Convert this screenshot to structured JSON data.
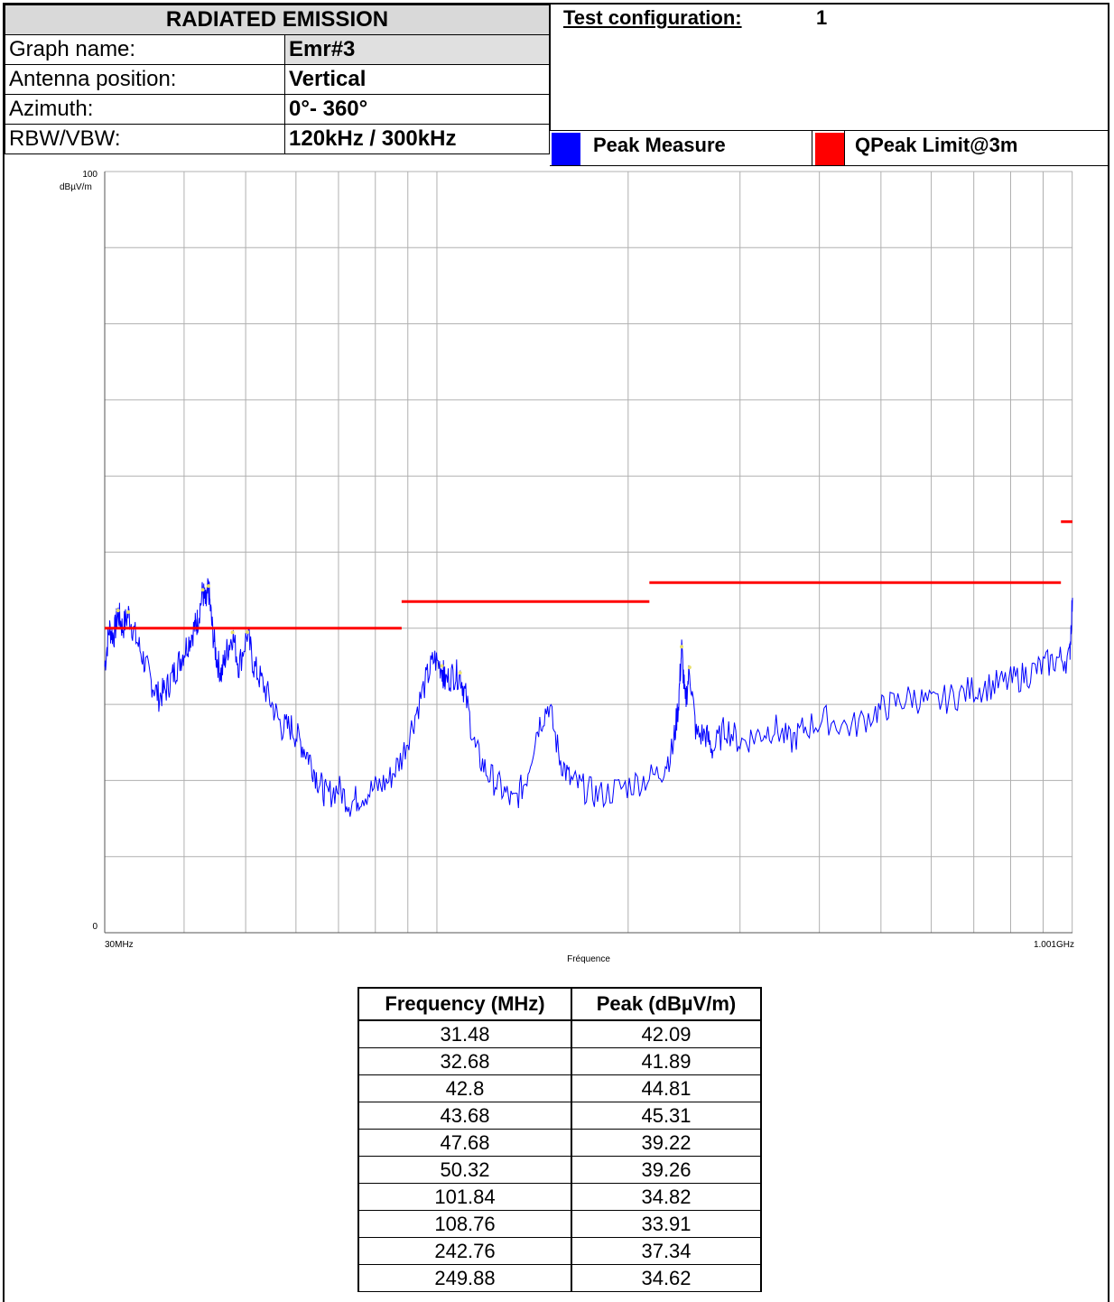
{
  "header": {
    "title": "RADIATED EMISSION",
    "rows": [
      {
        "label": "Graph name:",
        "value": "Emr#3"
      },
      {
        "label": "Antenna position:",
        "value": "Vertical"
      },
      {
        "label": "Azimuth:",
        "value": "0°- 360°"
      },
      {
        "label": "RBW/VBW:",
        "value": "120kHz / 300kHz"
      }
    ],
    "test_config_label": "Test configuration:",
    "test_config_value": "1"
  },
  "legend": [
    {
      "label": "Peak Measure",
      "color": "#0000ff"
    },
    {
      "label": "QPeak Limit@3m",
      "color": "#ff0000"
    }
  ],
  "chart_data": {
    "type": "line",
    "xscale": "log",
    "xlim": [
      30,
      1001
    ],
    "ylim": [
      0,
      100
    ],
    "ylabel": "dBµV/m",
    "xlabel": "Fréquence",
    "y_ticks": [
      "0",
      "100"
    ],
    "x_tick_labels": [
      "30MHz",
      "1.001GHz"
    ],
    "grid": true,
    "series": [
      {
        "name": "Peak Measure",
        "color": "#0000ff",
        "points": [
          [
            30,
            35
          ],
          [
            30.5,
            40
          ],
          [
            31,
            39
          ],
          [
            31.5,
            42
          ],
          [
            32,
            40
          ],
          [
            32.7,
            41.9
          ],
          [
            33.5,
            39
          ],
          [
            34.5,
            36
          ],
          [
            35.5,
            33
          ],
          [
            36.5,
            31
          ],
          [
            37.5,
            32
          ],
          [
            38.5,
            34
          ],
          [
            39.5,
            36
          ],
          [
            40.5,
            38
          ],
          [
            41.5,
            40
          ],
          [
            42,
            41
          ],
          [
            42.8,
            44.8
          ],
          [
            43.3,
            43
          ],
          [
            43.7,
            45.3
          ],
          [
            44.3,
            40
          ],
          [
            45,
            36
          ],
          [
            45.8,
            34
          ],
          [
            46.7,
            37
          ],
          [
            47.7,
            39.2
          ],
          [
            48.8,
            35
          ],
          [
            50.3,
            39.3
          ],
          [
            51.5,
            35
          ],
          [
            53,
            33
          ],
          [
            55,
            30
          ],
          [
            57,
            27
          ],
          [
            59,
            27
          ],
          [
            61,
            25
          ],
          [
            63,
            23
          ],
          [
            65,
            20
          ],
          [
            67,
            18
          ],
          [
            70,
            19
          ],
          [
            73,
            17
          ],
          [
            76,
            18
          ],
          [
            80,
            19
          ],
          [
            84,
            20
          ],
          [
            88,
            23
          ],
          [
            92,
            28
          ],
          [
            96,
            33
          ],
          [
            99,
            36
          ],
          [
            101.8,
            34.8
          ],
          [
            103,
            33
          ],
          [
            106,
            33.9
          ],
          [
            108.8,
            33.9
          ],
          [
            111,
            31
          ],
          [
            115,
            24
          ],
          [
            120,
            21
          ],
          [
            126,
            19
          ],
          [
            132,
            17
          ],
          [
            138,
            20
          ],
          [
            144,
            27
          ],
          [
            150,
            30
          ],
          [
            156,
            23
          ],
          [
            162,
            20
          ],
          [
            170,
            19
          ],
          [
            180,
            18
          ],
          [
            195,
            19
          ],
          [
            210,
            20
          ],
          [
            225,
            21
          ],
          [
            235,
            24
          ],
          [
            240,
            30
          ],
          [
            242.8,
            37.3
          ],
          [
            246,
            30
          ],
          [
            249.9,
            34.6
          ],
          [
            256,
            26
          ],
          [
            265,
            26
          ],
          [
            272,
            24
          ],
          [
            285,
            27
          ],
          [
            300,
            25
          ],
          [
            320,
            26
          ],
          [
            340,
            27
          ],
          [
            360,
            25
          ],
          [
            380,
            27
          ],
          [
            410,
            28
          ],
          [
            450,
            27
          ],
          [
            490,
            29
          ],
          [
            520,
            30
          ],
          [
            560,
            31
          ],
          [
            600,
            30
          ],
          [
            650,
            31
          ],
          [
            700,
            32
          ],
          [
            750,
            32.5
          ],
          [
            800,
            33
          ],
          [
            850,
            34
          ],
          [
            900,
            35
          ],
          [
            950,
            36
          ],
          [
            990,
            36
          ],
          [
            1001,
            44
          ]
        ]
      },
      {
        "name": "QPeak Limit@3m",
        "color": "#ff0000",
        "segments": [
          [
            [
              30,
              40
            ],
            [
              88,
              40
            ]
          ],
          [
            [
              88,
              43.5
            ],
            [
              216,
              43.5
            ]
          ],
          [
            [
              216,
              46
            ],
            [
              960,
              46
            ]
          ],
          [
            [
              960,
              54
            ],
            [
              1001,
              54
            ]
          ]
        ]
      }
    ],
    "peak_markers": [
      [
        31.48,
        42.09
      ],
      [
        32.68,
        41.89
      ],
      [
        42.8,
        44.81
      ],
      [
        43.68,
        45.31
      ],
      [
        47.68,
        39.22
      ],
      [
        50.32,
        39.26
      ],
      [
        101.84,
        34.82
      ],
      [
        108.76,
        33.91
      ],
      [
        242.76,
        37.34
      ],
      [
        249.88,
        34.62
      ]
    ]
  },
  "table": {
    "headers": [
      "Frequency (MHz)",
      "Peak (dBµV/m)"
    ],
    "rows": [
      [
        "31.48",
        "42.09"
      ],
      [
        "32.68",
        "41.89"
      ],
      [
        "42.8",
        "44.81"
      ],
      [
        "43.68",
        "45.31"
      ],
      [
        "47.68",
        "39.22"
      ],
      [
        "50.32",
        "39.26"
      ],
      [
        "101.84",
        "34.82"
      ],
      [
        "108.76",
        "33.91"
      ],
      [
        "242.76",
        "37.34"
      ],
      [
        "249.88",
        "34.62"
      ]
    ]
  }
}
